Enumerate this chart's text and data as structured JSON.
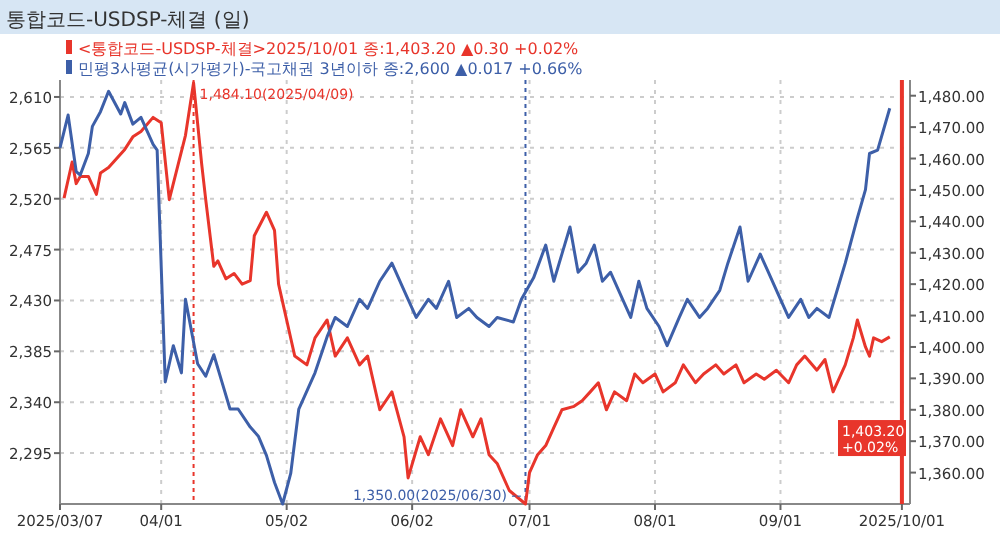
{
  "chart_data": {
    "type": "line",
    "title": "통합코드-USDSP-체결 (일)",
    "xlim": [
      "2025-03-07",
      "2025-10-03"
    ],
    "xticks": [
      {
        "value": "2025-03-07",
        "label": "2025/03/07"
      },
      {
        "value": "2025-04-01",
        "label": "04/01"
      },
      {
        "value": "2025-05-02",
        "label": "05/02"
      },
      {
        "value": "2025-06-02",
        "label": "06/02"
      },
      {
        "value": "2025-07-01",
        "label": "07/01"
      },
      {
        "value": "2025-08-01",
        "label": "08/01"
      },
      {
        "value": "2025-09-01",
        "label": "09/01"
      },
      {
        "value": "2025-10-01",
        "label": "2025/10/01"
      }
    ],
    "ylim": [
      2250,
      2625
    ],
    "yticks": [
      {
        "value": 2295,
        "label": "2,295"
      },
      {
        "value": 2340,
        "label": "2,340"
      },
      {
        "value": 2385,
        "label": "2,385"
      },
      {
        "value": 2430,
        "label": "2,430"
      },
      {
        "value": 2475,
        "label": "2,475"
      },
      {
        "value": 2520,
        "label": "2,520"
      },
      {
        "value": 2565,
        "label": "2,565"
      },
      {
        "value": 2610,
        "label": "2,610"
      }
    ],
    "y2lim": [
      1350,
      1485
    ],
    "y2ticks": [
      {
        "value": 1360,
        "label": "1,360.00"
      },
      {
        "value": 1370,
        "label": "1,370.00"
      },
      {
        "value": 1380,
        "label": "1,380.00"
      },
      {
        "value": 1390,
        "label": "1,390.00"
      },
      {
        "value": 1400,
        "label": "1,400.00"
      },
      {
        "value": 1410,
        "label": "1,410.00"
      },
      {
        "value": 1420,
        "label": "1,420.00"
      },
      {
        "value": 1430,
        "label": "1,430.00"
      },
      {
        "value": 1440,
        "label": "1,440.00"
      },
      {
        "value": 1450,
        "label": "1,450.00"
      },
      {
        "value": 1460,
        "label": "1,460.00"
      },
      {
        "value": 1470,
        "label": "1,470.00"
      },
      {
        "value": 1480,
        "label": "1,480.00"
      }
    ],
    "grid": true,
    "legend": "top left",
    "series": [
      {
        "name": "<통합코드-USDSP-체결>2025/10/01 종:1,403.20 ▲0.30 +0.02%",
        "color": "#e8352b",
        "axis": "y2",
        "x": [
          "2025-03-08",
          "2025-03-10",
          "2025-03-11",
          "2025-03-12",
          "2025-03-14",
          "2025-03-16",
          "2025-03-17",
          "2025-03-19",
          "2025-03-21",
          "2025-03-23",
          "2025-03-25",
          "2025-03-27",
          "2025-03-30",
          "2025-04-01",
          "2025-04-03",
          "2025-04-07",
          "2025-04-09",
          "2025-04-11",
          "2025-04-12",
          "2025-04-14",
          "2025-04-15",
          "2025-04-17",
          "2025-04-19",
          "2025-04-21",
          "2025-04-23",
          "2025-04-24",
          "2025-04-27",
          "2025-04-29",
          "2025-04-30",
          "2025-05-01",
          "2025-05-02",
          "2025-05-04",
          "2025-05-07",
          "2025-05-09",
          "2025-05-12",
          "2025-05-14",
          "2025-05-17",
          "2025-05-20",
          "2025-05-22",
          "2025-05-25",
          "2025-05-28",
          "2025-05-31",
          "2025-06-01",
          "2025-06-04",
          "2025-06-06",
          "2025-06-09",
          "2025-06-12",
          "2025-06-14",
          "2025-06-17",
          "2025-06-19",
          "2025-06-21",
          "2025-06-23",
          "2025-06-26",
          "2025-06-30",
          "2025-07-01",
          "2025-07-03",
          "2025-07-05",
          "2025-07-07",
          "2025-07-09",
          "2025-07-12",
          "2025-07-14",
          "2025-07-16",
          "2025-07-18",
          "2025-07-20",
          "2025-07-22",
          "2025-07-25",
          "2025-07-27",
          "2025-07-29",
          "2025-08-01",
          "2025-08-03",
          "2025-08-06",
          "2025-08-08",
          "2025-08-11",
          "2025-08-13",
          "2025-08-16",
          "2025-08-18",
          "2025-08-21",
          "2025-08-23",
          "2025-08-26",
          "2025-08-28",
          "2025-08-31",
          "2025-09-03",
          "2025-09-05",
          "2025-09-07",
          "2025-09-10",
          "2025-09-12",
          "2025-09-14",
          "2025-09-17",
          "2025-09-19",
          "2025-09-20",
          "2025-09-22",
          "2025-09-23",
          "2025-09-24",
          "2025-09-26",
          "2025-09-28"
        ],
        "values": [
          1447.4,
          1458.9,
          1452.0,
          1454.3,
          1454.3,
          1448.6,
          1455.4,
          1457.1,
          1460.0,
          1462.9,
          1466.9,
          1468.6,
          1473.1,
          1471.4,
          1446.9,
          1467.4,
          1484.1,
          1458.3,
          1446.9,
          1425.7,
          1427.4,
          1421.7,
          1423.4,
          1420.0,
          1421.1,
          1435.4,
          1442.9,
          1437.1,
          1420.0,
          1414.3,
          1408.6,
          1397.1,
          1394.3,
          1402.9,
          1408.6,
          1397.1,
          1402.9,
          1394.3,
          1397.1,
          1380.0,
          1385.7,
          1371.4,
          1358.3,
          1371.4,
          1365.7,
          1377.1,
          1368.6,
          1380.0,
          1371.4,
          1377.1,
          1365.7,
          1362.9,
          1354.3,
          1350.0,
          1360.0,
          1365.7,
          1368.6,
          1374.3,
          1380.0,
          1381.1,
          1382.9,
          1385.7,
          1388.6,
          1380.0,
          1385.7,
          1382.9,
          1391.4,
          1388.6,
          1391.4,
          1385.7,
          1388.6,
          1394.3,
          1388.6,
          1391.4,
          1394.3,
          1391.4,
          1394.3,
          1388.6,
          1391.4,
          1389.7,
          1392.6,
          1388.6,
          1394.3,
          1397.1,
          1392.6,
          1396.0,
          1385.7,
          1394.3,
          1402.9,
          1408.6,
          1400.0,
          1397.1,
          1402.9,
          1401.7,
          1403.2
        ]
      },
      {
        "name": "민평3사평균(시가평가)-국고채권 3년이하 종:2,600 ▲0.017 +0.66%",
        "color": "#3d5fa8",
        "x": [
          "2025-03-07",
          "2025-03-09",
          "2025-03-11",
          "2025-03-12",
          "2025-03-14",
          "2025-03-15",
          "2025-03-17",
          "2025-03-19",
          "2025-03-22",
          "2025-03-23",
          "2025-03-25",
          "2025-03-27",
          "2025-03-30",
          "2025-03-31",
          "2025-04-02",
          "2025-04-04",
          "2025-04-06",
          "2025-04-07",
          "2025-04-10",
          "2025-04-12",
          "2025-04-14",
          "2025-04-16",
          "2025-04-18",
          "2025-04-20",
          "2025-04-23",
          "2025-04-25",
          "2025-04-27",
          "2025-04-29",
          "2025-05-01",
          "2025-05-03",
          "2025-05-05",
          "2025-05-09",
          "2025-05-12",
          "2025-05-14",
          "2025-05-17",
          "2025-05-20",
          "2025-05-22",
          "2025-05-25",
          "2025-05-28",
          "2025-05-31",
          "2025-06-03",
          "2025-06-06",
          "2025-06-08",
          "2025-06-11",
          "2025-06-13",
          "2025-06-16",
          "2025-06-18",
          "2025-06-21",
          "2025-06-23",
          "2025-06-27",
          "2025-06-29",
          "2025-07-02",
          "2025-07-05",
          "2025-07-07",
          "2025-07-09",
          "2025-07-11",
          "2025-07-13",
          "2025-07-15",
          "2025-07-17",
          "2025-07-19",
          "2025-07-21",
          "2025-07-24",
          "2025-07-26",
          "2025-07-28",
          "2025-07-30",
          "2025-08-02",
          "2025-08-04",
          "2025-08-07",
          "2025-08-09",
          "2025-08-12",
          "2025-08-14",
          "2025-08-17",
          "2025-08-19",
          "2025-08-22",
          "2025-08-24",
          "2025-08-27",
          "2025-08-29",
          "2025-09-01",
          "2025-09-03",
          "2025-09-06",
          "2025-09-08",
          "2025-09-10",
          "2025-09-13",
          "2025-09-15",
          "2025-09-17",
          "2025-09-20",
          "2025-09-22",
          "2025-09-23",
          "2025-09-25",
          "2025-09-28"
        ],
        "values": [
          2565,
          2594,
          2544,
          2541,
          2560,
          2584,
          2597,
          2615,
          2595,
          2605,
          2586,
          2592,
          2568,
          2563,
          2358,
          2390,
          2366,
          2431,
          2374,
          2363,
          2382,
          2358,
          2334,
          2334,
          2318,
          2310,
          2293,
          2269,
          2250,
          2277,
          2334,
          2366,
          2398,
          2415,
          2407,
          2431,
          2423,
          2447,
          2463,
          2439,
          2415,
          2431,
          2423,
          2447,
          2415,
          2423,
          2415,
          2407,
          2415,
          2411,
          2431,
          2450,
          2479,
          2447,
          2471,
          2495,
          2455,
          2463,
          2479,
          2447,
          2455,
          2431,
          2415,
          2447,
          2423,
          2407,
          2390,
          2415,
          2431,
          2415,
          2423,
          2439,
          2463,
          2495,
          2447,
          2471,
          2455,
          2431,
          2415,
          2431,
          2415,
          2423,
          2415,
          2439,
          2463,
          2503,
          2528,
          2560,
          2563,
          2600
        ]
      }
    ],
    "ref_lines": [
      {
        "axis": "x",
        "value": "2025-04-09",
        "color": "#e8352b",
        "line_style": "dotted"
      },
      {
        "axis": "x",
        "value": "2025-06-30",
        "color": "#3d5fa8",
        "line_style": "dotted"
      },
      {
        "axis": "x",
        "value": "2025-10-01",
        "color": "#e8352b",
        "line_style": "solid"
      }
    ],
    "annotations": [
      "1,484.10(2025/04/09)",
      "1,350.00(2025/06/30) --",
      "1,403.20\n+0.02%"
    ]
  }
}
